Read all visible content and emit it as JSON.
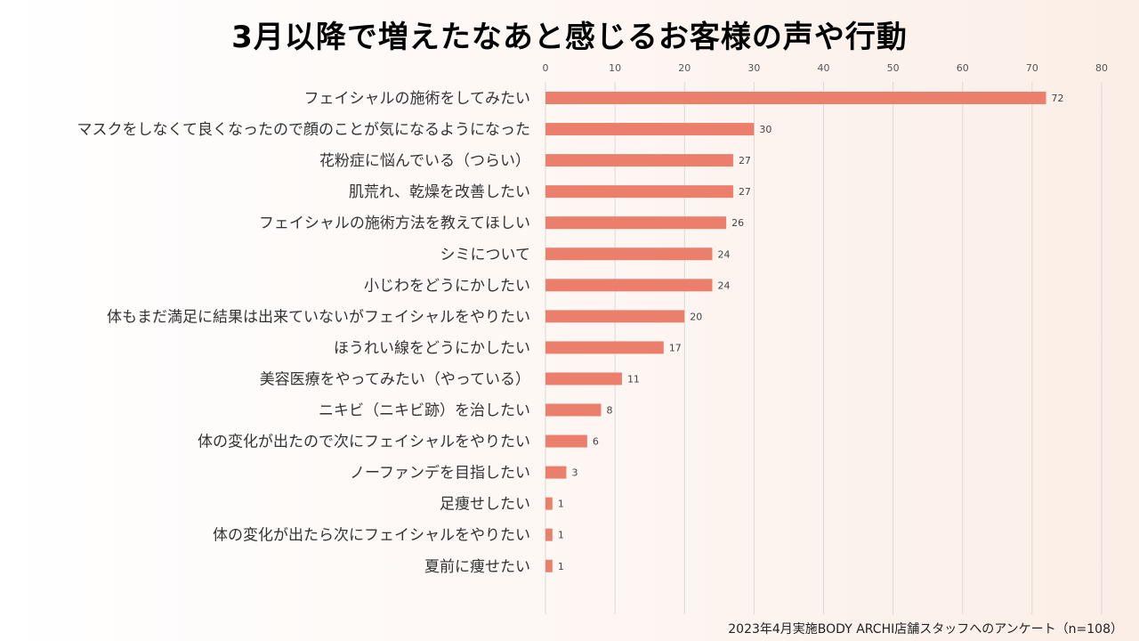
{
  "chart_data": {
    "type": "bar",
    "orientation": "horizontal",
    "title": "3月以降で増えたなあと感じるお客様の声や行動",
    "categories": [
      "フェイシャルの施術をしてみたい",
      "マスクをしなくて良くなったので顔のことが気になるようになった",
      "花粉症に悩んでいる（つらい）",
      "肌荒れ、乾燥を改善したい",
      "フェイシャルの施術方法を教えてほしい",
      "シミについて",
      "小じわをどうにかしたい",
      "体もまだ満足に結果は出来ていないがフェイシャルをやりたい",
      "ほうれい線をどうにかしたい",
      "美容医療をやってみたい（やっている）",
      "ニキビ（ニキビ跡）を治したい",
      "体の変化が出たので次にフェイシャルをやりたい",
      "ノーファンデを目指したい",
      "足痩せしたい",
      "体の変化が出たら次にフェイシャルをやりたい",
      "夏前に痩せたい"
    ],
    "values": [
      72,
      30,
      27,
      27,
      26,
      24,
      24,
      20,
      17,
      11,
      8,
      6,
      3,
      1,
      1,
      1
    ],
    "xlim": [
      0,
      80
    ],
    "xticks": [
      0,
      10,
      20,
      30,
      40,
      50,
      60,
      70,
      80
    ],
    "axis_position": "top",
    "grid": true,
    "data_labels": true,
    "bar_color": "#ec7f6b",
    "grid_color": "#d9d9d9",
    "source_note": "2023年4月実施BODY ARCHI店舗スタッフへのアンケート（n=108）"
  }
}
